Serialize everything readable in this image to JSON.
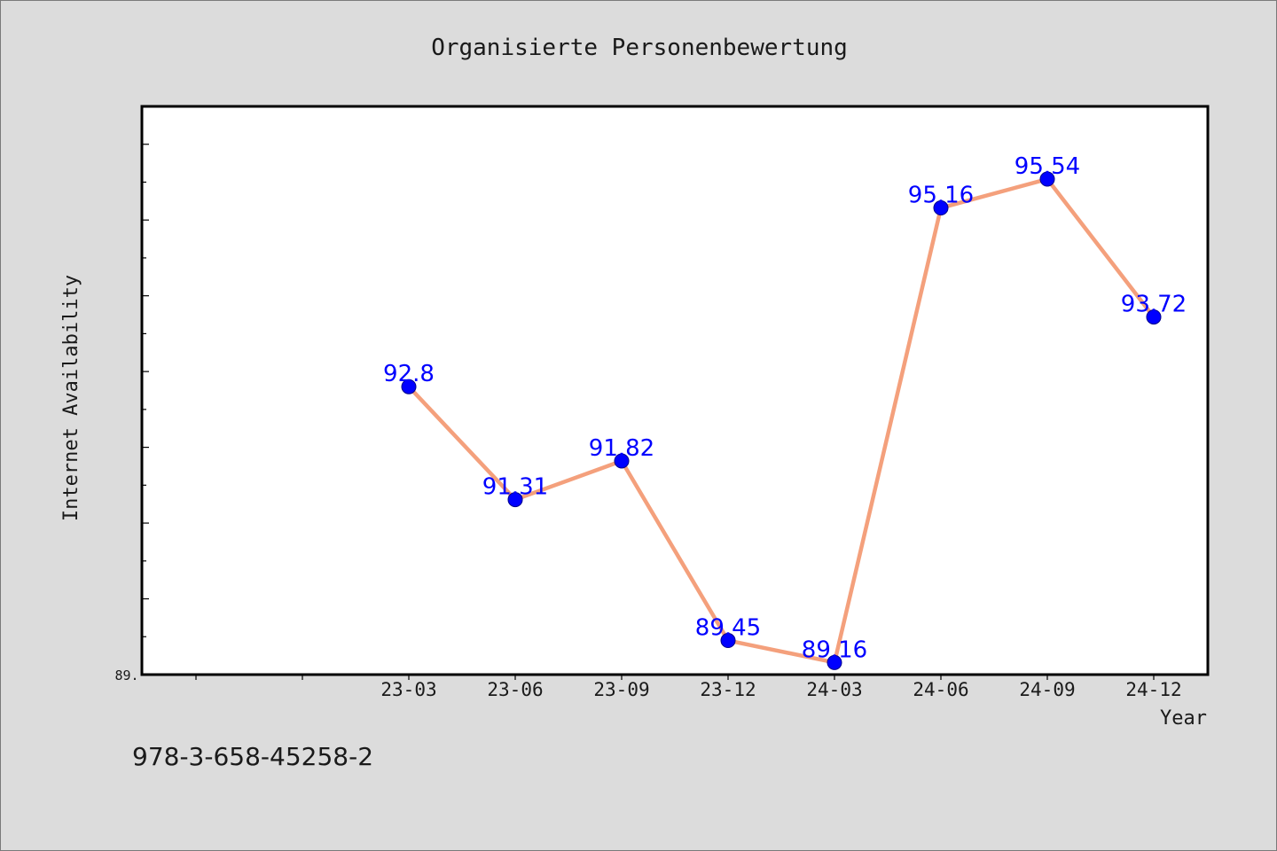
{
  "chart_data": {
    "type": "line",
    "title": "Organisierte Personenbewertung",
    "xlabel": "Year",
    "ylabel": "Internet Availability",
    "categories": [
      "23-03",
      "23-06",
      "23-09",
      "23-12",
      "24-03",
      "24-06",
      "24-09",
      "24-12"
    ],
    "series": [
      {
        "values": [
          92.8,
          91.31,
          91.82,
          89.45,
          89.16,
          95.16,
          95.54,
          93.72
        ]
      }
    ],
    "data_labels": [
      "92.8",
      "91.31",
      "91.82",
      "89.45",
      "89.16",
      "95.16",
      "95.54",
      "93.72"
    ],
    "ylim": [
      89.0,
      96.5
    ],
    "y_tick_label": "89.",
    "grid": false,
    "line_color": "#f4a07c",
    "marker_color": "#0000ff",
    "label_color": "#0000ff"
  },
  "footer": {
    "isbn": "978-3-658-45258-2"
  }
}
